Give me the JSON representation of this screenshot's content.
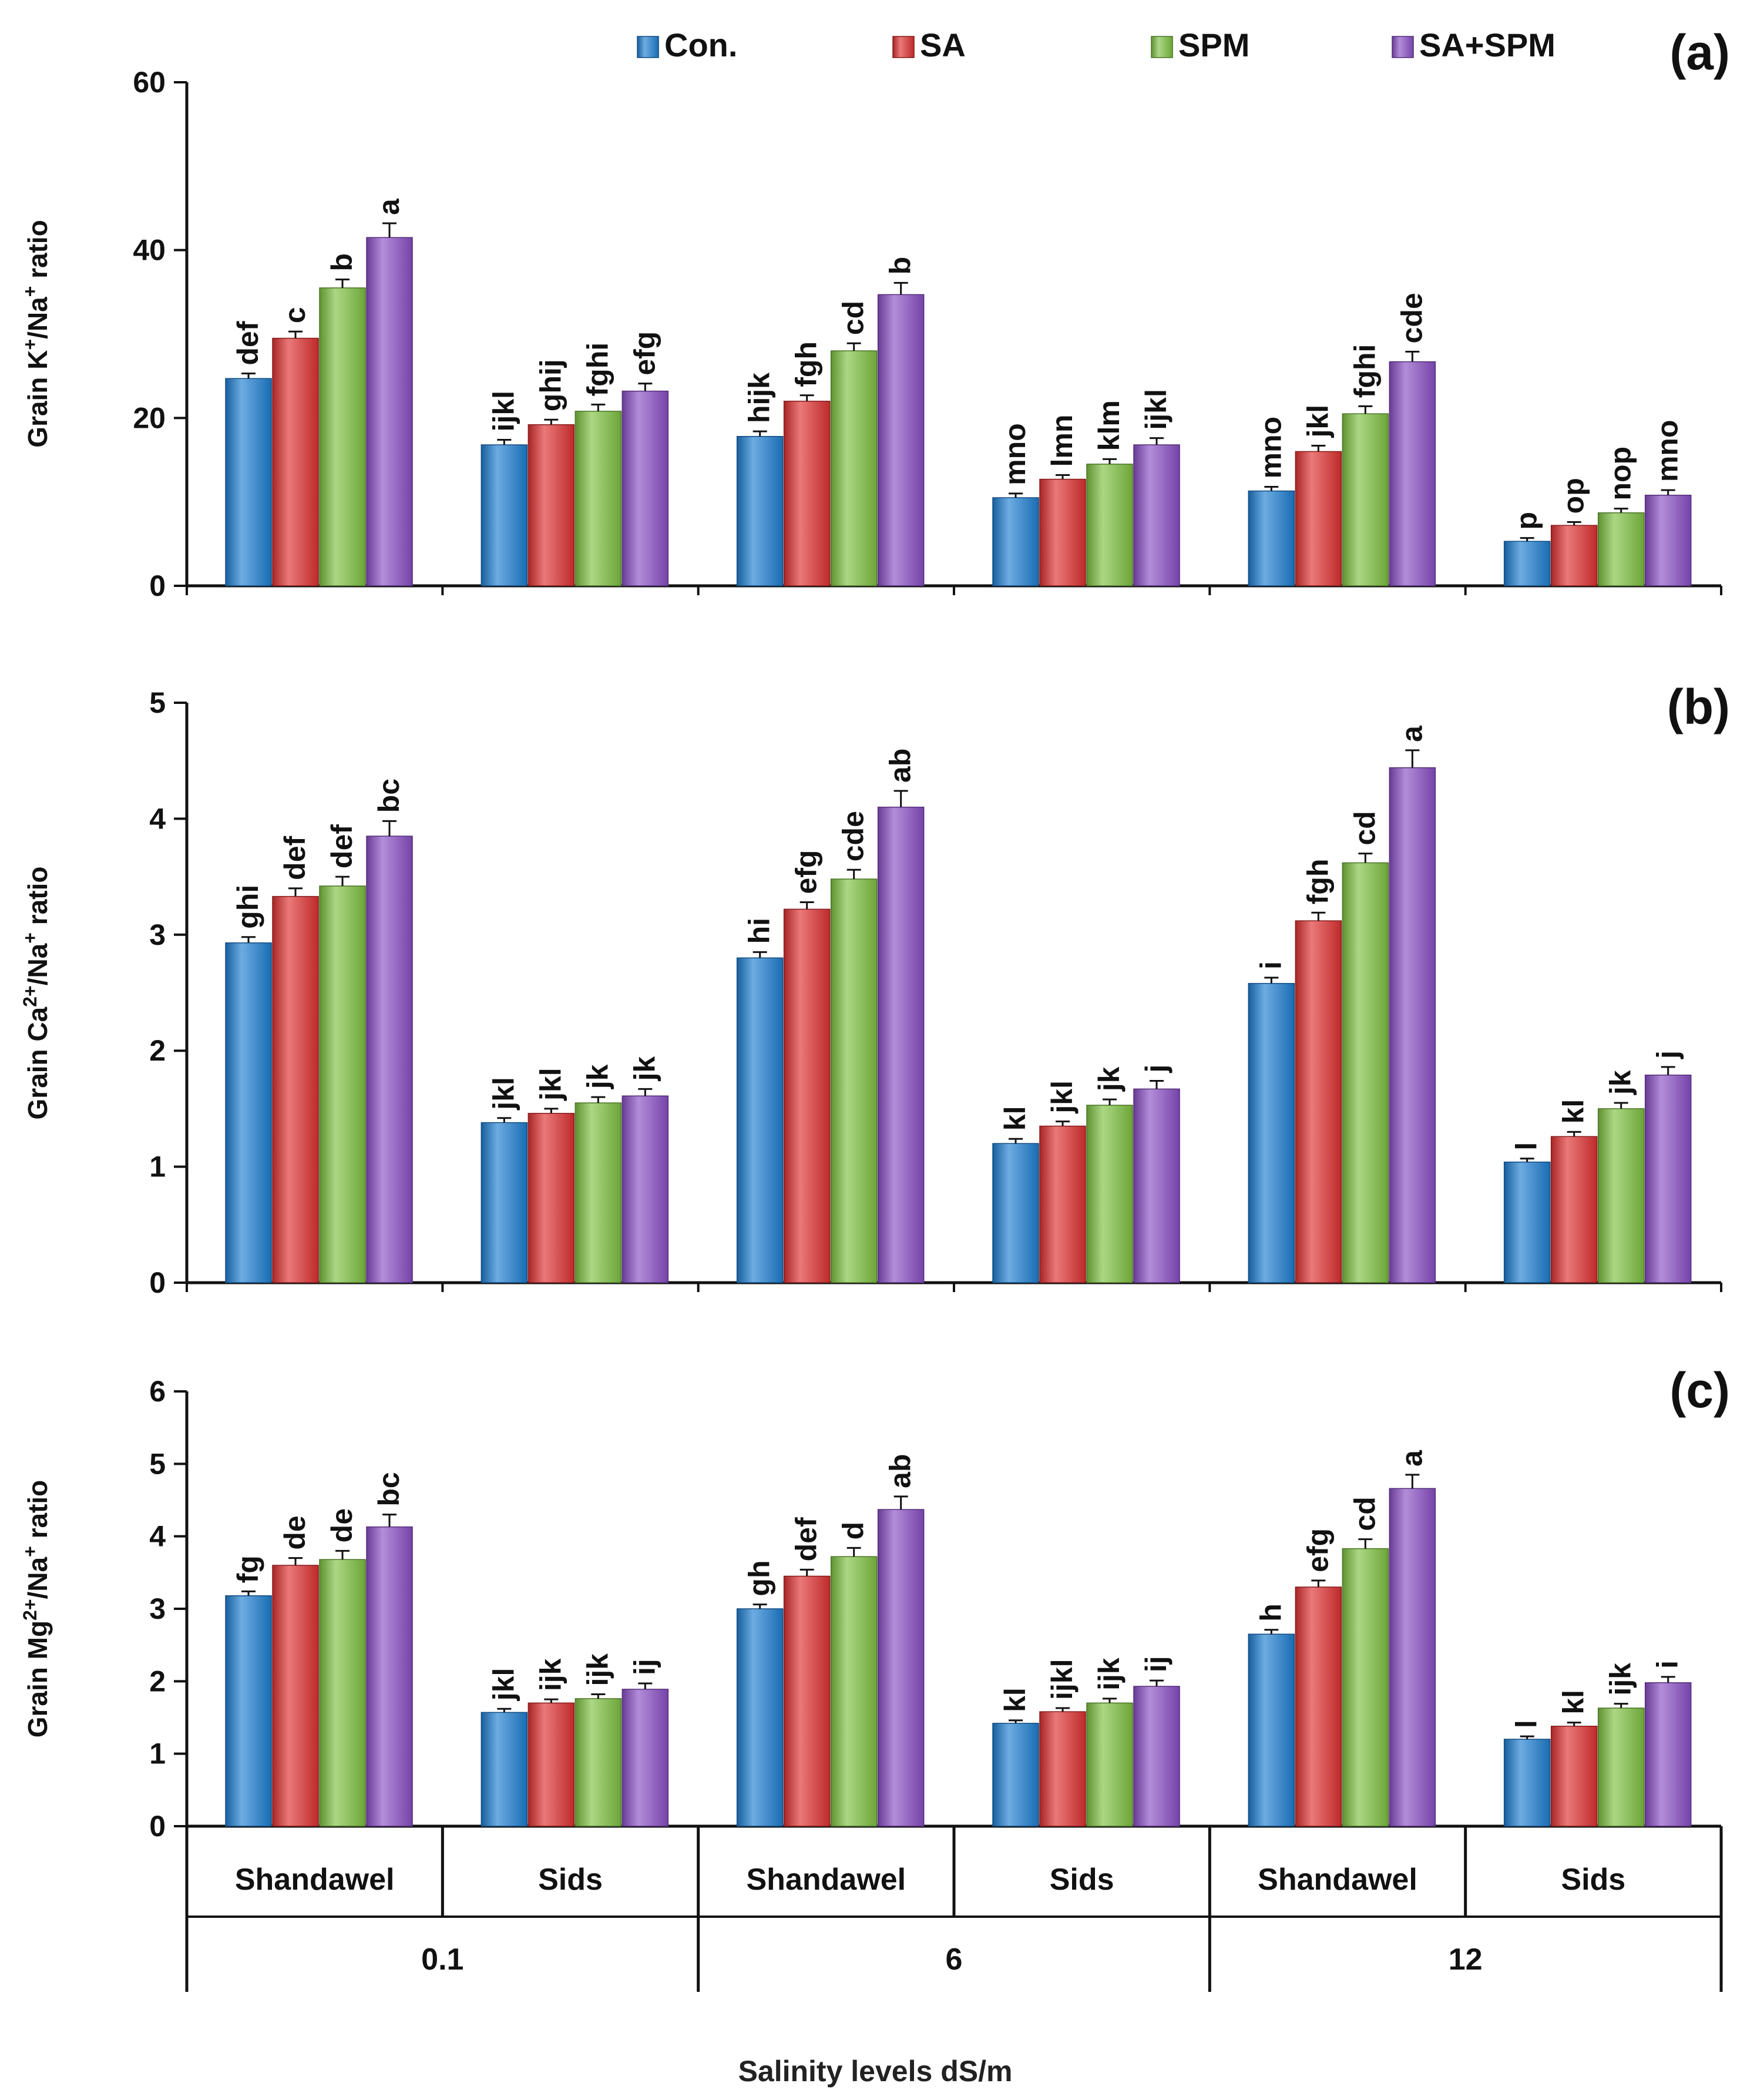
{
  "legend": [
    {
      "label": "Con.",
      "color": "#1f7fd3",
      "icon": "legend-swatch-icon"
    },
    {
      "label": "SA",
      "color": "#e03131",
      "icon": "legend-swatch-icon"
    },
    {
      "label": "SPM",
      "color": "#7fc242",
      "icon": "legend-swatch-icon"
    },
    {
      "label": "SA+SPM",
      "color": "#8a4fc6",
      "icon": "legend-swatch-icon"
    }
  ],
  "xlabel": "Salinity levels dS/m",
  "cultivars": [
    "Shandawel",
    "Sids",
    "Shandawel",
    "Sids",
    "Shandawel",
    "Sids"
  ],
  "salinity_levels": [
    "0.1",
    "6",
    "12"
  ],
  "chart_data": [
    {
      "type": "bar",
      "panel_label": "(a)",
      "ylabel_parts": [
        "Grain K",
        "+",
        "/Na",
        "+",
        " ratio"
      ],
      "categories": [
        "Shandawel 0.1",
        "Sids 0.1",
        "Shandawel 6",
        "Sids 6",
        "Shandawel 12",
        "Sids 12"
      ],
      "ylim": [
        0,
        60
      ],
      "yticks": [
        0,
        20,
        40,
        60
      ],
      "series": [
        {
          "name": "Con.",
          "values": [
            24.7,
            16.8,
            17.8,
            10.5,
            11.3,
            5.3
          ],
          "errors": [
            0.6,
            0.6,
            0.6,
            0.5,
            0.5,
            0.4
          ],
          "letters": [
            "def",
            "ijkl",
            "hijk",
            "mno",
            "mno",
            "p"
          ]
        },
        {
          "name": "SA",
          "values": [
            29.5,
            19.2,
            22.0,
            12.7,
            16.0,
            7.2
          ],
          "errors": [
            0.8,
            0.6,
            0.7,
            0.5,
            0.7,
            0.4
          ],
          "letters": [
            "c",
            "ghij",
            "fgh",
            "lmn",
            "jkl",
            "op"
          ]
        },
        {
          "name": "SPM",
          "values": [
            35.5,
            20.8,
            28.0,
            14.5,
            20.5,
            8.7
          ],
          "errors": [
            1.0,
            0.8,
            0.9,
            0.6,
            0.9,
            0.5
          ],
          "letters": [
            "b",
            "fghi",
            "cd",
            "klm",
            "fghi",
            "nop"
          ]
        },
        {
          "name": "SA+SPM",
          "values": [
            41.5,
            23.2,
            34.7,
            16.8,
            26.7,
            10.8
          ],
          "errors": [
            1.7,
            0.9,
            1.4,
            0.8,
            1.2,
            0.6
          ],
          "letters": [
            "a",
            "efg",
            "b",
            "ijkl",
            "cde",
            "mno"
          ]
        }
      ]
    },
    {
      "type": "bar",
      "panel_label": "(b)",
      "ylabel_parts": [
        "Grain Ca",
        "2+",
        "/Na",
        "+",
        " ratio"
      ],
      "categories": [
        "Shandawel 0.1",
        "Sids 0.1",
        "Shandawel 6",
        "Sids 6",
        "Shandawel 12",
        "Sids 12"
      ],
      "ylim": [
        0,
        5
      ],
      "yticks": [
        0,
        1,
        2,
        3,
        4,
        5
      ],
      "series": [
        {
          "name": "Con.",
          "values": [
            2.93,
            1.38,
            2.8,
            1.2,
            2.58,
            1.04
          ],
          "errors": [
            0.05,
            0.04,
            0.05,
            0.04,
            0.05,
            0.03
          ],
          "letters": [
            "ghi",
            "jkl",
            "hi",
            "kl",
            "i",
            "l"
          ]
        },
        {
          "name": "SA",
          "values": [
            3.33,
            1.46,
            3.22,
            1.35,
            3.12,
            1.26
          ],
          "errors": [
            0.07,
            0.04,
            0.06,
            0.04,
            0.07,
            0.04
          ],
          "letters": [
            "def",
            "jkl",
            "efg",
            "jkl",
            "fgh",
            "kl"
          ]
        },
        {
          "name": "SPM",
          "values": [
            3.42,
            1.55,
            3.48,
            1.53,
            3.62,
            1.5
          ],
          "errors": [
            0.08,
            0.05,
            0.08,
            0.05,
            0.08,
            0.05
          ],
          "letters": [
            "def",
            "jk",
            "cde",
            "jk",
            "cd",
            "jk"
          ]
        },
        {
          "name": "SA+SPM",
          "values": [
            3.85,
            1.61,
            4.1,
            1.67,
            4.44,
            1.79
          ],
          "errors": [
            0.13,
            0.06,
            0.14,
            0.07,
            0.15,
            0.07
          ],
          "letters": [
            "bc",
            "jk",
            "ab",
            "j",
            "a",
            "j"
          ]
        }
      ]
    },
    {
      "type": "bar",
      "panel_label": "(c)",
      "ylabel_parts": [
        "Grain Mg",
        "2+",
        "/Na",
        "+",
        " ratio"
      ],
      "categories": [
        "Shandawel 0.1",
        "Sids 0.1",
        "Shandawel 6",
        "Sids 6",
        "Shandawel 12",
        "Sids 12"
      ],
      "ylim": [
        0,
        6
      ],
      "yticks": [
        0,
        1,
        2,
        3,
        4,
        5,
        6
      ],
      "series": [
        {
          "name": "Con.",
          "values": [
            3.18,
            1.57,
            3.0,
            1.42,
            2.65,
            1.2
          ],
          "errors": [
            0.06,
            0.05,
            0.06,
            0.04,
            0.06,
            0.04
          ],
          "letters": [
            "fg",
            "jkl",
            "gh",
            "kl",
            "h",
            "l"
          ]
        },
        {
          "name": "SA",
          "values": [
            3.6,
            1.7,
            3.45,
            1.58,
            3.3,
            1.38
          ],
          "errors": [
            0.1,
            0.05,
            0.09,
            0.05,
            0.09,
            0.05
          ],
          "letters": [
            "de",
            "ijk",
            "def",
            "ijkl",
            "efg",
            "kl"
          ]
        },
        {
          "name": "SPM",
          "values": [
            3.68,
            1.76,
            3.72,
            1.7,
            3.83,
            1.63
          ],
          "errors": [
            0.12,
            0.06,
            0.12,
            0.06,
            0.13,
            0.06
          ],
          "letters": [
            "de",
            "ijk",
            "d",
            "ijk",
            "cd",
            "ijk"
          ]
        },
        {
          "name": "SA+SPM",
          "values": [
            4.13,
            1.89,
            4.37,
            1.93,
            4.66,
            1.98
          ],
          "errors": [
            0.17,
            0.08,
            0.18,
            0.08,
            0.19,
            0.08
          ],
          "letters": [
            "bc",
            "ij",
            "ab",
            "ij",
            "a",
            "i"
          ]
        }
      ]
    }
  ]
}
